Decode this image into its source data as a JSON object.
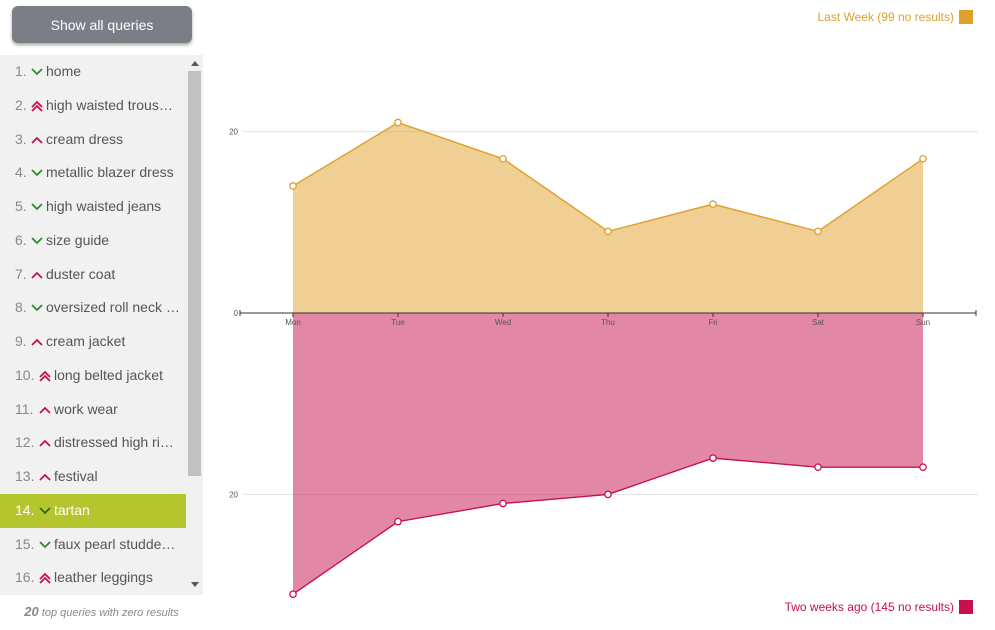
{
  "sidebar": {
    "show_all_label": "Show all queries",
    "items": [
      {
        "num": "1.",
        "label": "home",
        "trend": "down"
      },
      {
        "num": "2.",
        "label": "high waisted trous…",
        "trend": "double-up"
      },
      {
        "num": "3.",
        "label": "cream dress",
        "trend": "up"
      },
      {
        "num": "4.",
        "label": "metallic blazer dress",
        "trend": "down"
      },
      {
        "num": "5.",
        "label": "high waisted jeans",
        "trend": "down"
      },
      {
        "num": "6.",
        "label": "size guide",
        "trend": "down"
      },
      {
        "num": "7.",
        "label": "duster coat",
        "trend": "up"
      },
      {
        "num": "8.",
        "label": "oversized roll neck …",
        "trend": "down"
      },
      {
        "num": "9.",
        "label": "cream jacket",
        "trend": "up"
      },
      {
        "num": "10.",
        "label": "long belted jacket",
        "trend": "double-up"
      },
      {
        "num": "11.",
        "label": "work wear",
        "trend": "up"
      },
      {
        "num": "12.",
        "label": "distressed high ri…",
        "trend": "up"
      },
      {
        "num": "13.",
        "label": "festival",
        "trend": "up"
      },
      {
        "num": "14.",
        "label": "tartan",
        "trend": "down",
        "active": true
      },
      {
        "num": "15.",
        "label": "faux pearl studde…",
        "trend": "down"
      },
      {
        "num": "16.",
        "label": "leather leggings",
        "trend": "double-up"
      }
    ],
    "footer_count": "20",
    "footer_text": "top queries with zero results"
  },
  "colors": {
    "accent_active": "#b5c52d",
    "trend_down": "#2e8b2e",
    "trend_up": "#c8104f",
    "last_week": "#e0a02a",
    "two_weeks_ago": "#c8104f"
  },
  "chart_data": {
    "type": "area",
    "categories": [
      "Mon",
      "Tue",
      "Wed",
      "Thu",
      "Fri",
      "Sat",
      "Sun"
    ],
    "series": [
      {
        "name": "Last Week (99 no results)",
        "direction": "up",
        "values": [
          14,
          21,
          17,
          9,
          12,
          9,
          17
        ]
      },
      {
        "name": "Two weeks ago (145 no results)",
        "direction": "down",
        "values": [
          31,
          23,
          21,
          20,
          16,
          17,
          17
        ]
      }
    ],
    "ytick_labels": [
      "20",
      "0",
      "20"
    ],
    "grid": true
  }
}
